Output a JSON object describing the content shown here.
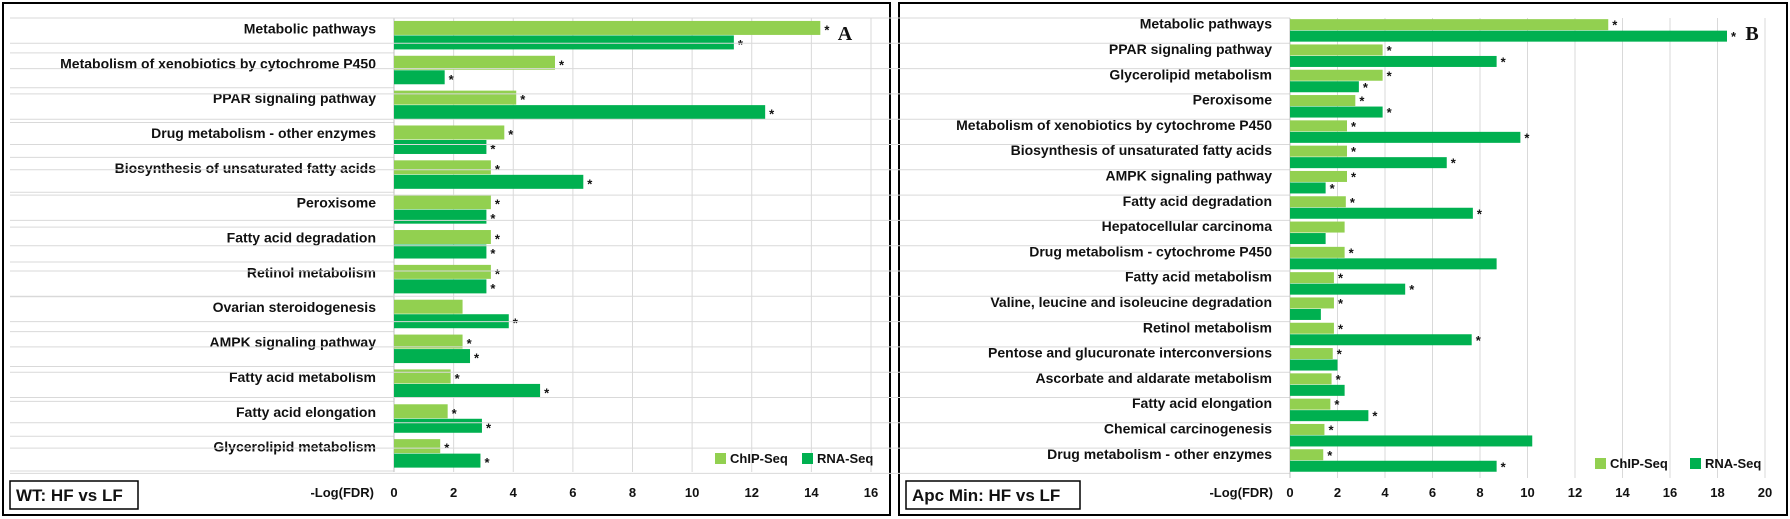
{
  "legend": {
    "chip_label": "ChIP-Seq",
    "rna_label": "RNA-Seq"
  },
  "colors": {
    "chip": "#92d050",
    "rna": "#00b050"
  },
  "chart_data": [
    {
      "type": "bar",
      "panel_letter": "A",
      "subtitle": "WT: HF vs LF",
      "xlabel": "-Log(FDR)",
      "xlim": [
        0,
        16
      ],
      "xticks": [
        0,
        2,
        4,
        6,
        8,
        10,
        12,
        14,
        16
      ],
      "orientation": "horizontal",
      "grid": true,
      "legend_position": "bottom-right",
      "categories": [
        "Metabolic pathways",
        "Metabolism of xenobiotics by cytochrome P450",
        "PPAR signaling pathway",
        "Drug metabolism - other enzymes",
        "Biosynthesis of unsaturated fatty acids",
        "Peroxisome",
        "Fatty acid degradation",
        "Retinol metabolism",
        "Ovarian steroidogenesis",
        "AMPK signaling pathway",
        "Fatty acid metabolism",
        "Fatty acid elongation",
        "Glycerolipid metabolism"
      ],
      "series": [
        {
          "name": "ChIP-Seq",
          "values": [
            14.3,
            5.4,
            4.1,
            3.7,
            3.25,
            3.25,
            3.25,
            3.25,
            2.3,
            2.3,
            1.9,
            1.8,
            1.55
          ],
          "significant": [
            true,
            true,
            true,
            true,
            true,
            true,
            true,
            true,
            false,
            true,
            true,
            true,
            true
          ]
        },
        {
          "name": "RNA-Seq",
          "values": [
            11.4,
            1.7,
            12.45,
            3.1,
            6.35,
            3.1,
            3.1,
            3.1,
            3.85,
            2.55,
            4.9,
            2.95,
            2.9
          ],
          "significant": [
            true,
            true,
            true,
            true,
            true,
            true,
            true,
            true,
            true,
            true,
            true,
            true,
            true
          ]
        }
      ]
    },
    {
      "type": "bar",
      "panel_letter": "B",
      "subtitle": "Apc Min: HF vs LF",
      "xlabel": "-Log(FDR)",
      "xlim": [
        0,
        20
      ],
      "xticks": [
        0,
        2,
        4,
        6,
        8,
        10,
        12,
        14,
        16,
        18,
        20
      ],
      "orientation": "horizontal",
      "grid": true,
      "legend_position": "bottom-right",
      "categories": [
        "Metabolic pathways",
        "PPAR signaling pathway",
        "Glycerolipid metabolism",
        "Peroxisome",
        "Metabolism of xenobiotics by cytochrome P450",
        "Biosynthesis of unsaturated fatty acids",
        "AMPK signaling pathway",
        "Fatty acid degradation",
        "Hepatocellular carcinoma",
        "Drug metabolism - cytochrome P450",
        "Fatty acid metabolism",
        "Valine, leucine and isoleucine degradation",
        "Retinol metabolism",
        "Pentose and glucuronate interconversions",
        "Ascorbate and aldarate metabolism",
        "Fatty acid elongation",
        "Chemical carcinogenesis",
        "Drug metabolism - other enzymes"
      ],
      "series": [
        {
          "name": "ChIP-Seq",
          "values": [
            13.4,
            3.9,
            3.9,
            2.75,
            2.4,
            2.4,
            2.4,
            2.35,
            2.3,
            2.3,
            1.85,
            1.85,
            1.85,
            1.8,
            1.75,
            1.7,
            1.45,
            1.4
          ],
          "significant": [
            true,
            true,
            true,
            true,
            true,
            true,
            true,
            true,
            false,
            true,
            true,
            true,
            true,
            true,
            true,
            true,
            true,
            true
          ]
        },
        {
          "name": "RNA-Seq",
          "values": [
            18.4,
            8.7,
            2.9,
            3.9,
            9.7,
            6.6,
            1.5,
            7.7,
            1.5,
            8.7,
            4.85,
            1.3,
            7.65,
            2.0,
            2.3,
            3.3,
            10.2,
            8.7
          ],
          "significant": [
            true,
            true,
            true,
            true,
            true,
            true,
            true,
            true,
            false,
            false,
            true,
            false,
            true,
            false,
            false,
            true,
            false,
            true
          ]
        }
      ]
    }
  ]
}
